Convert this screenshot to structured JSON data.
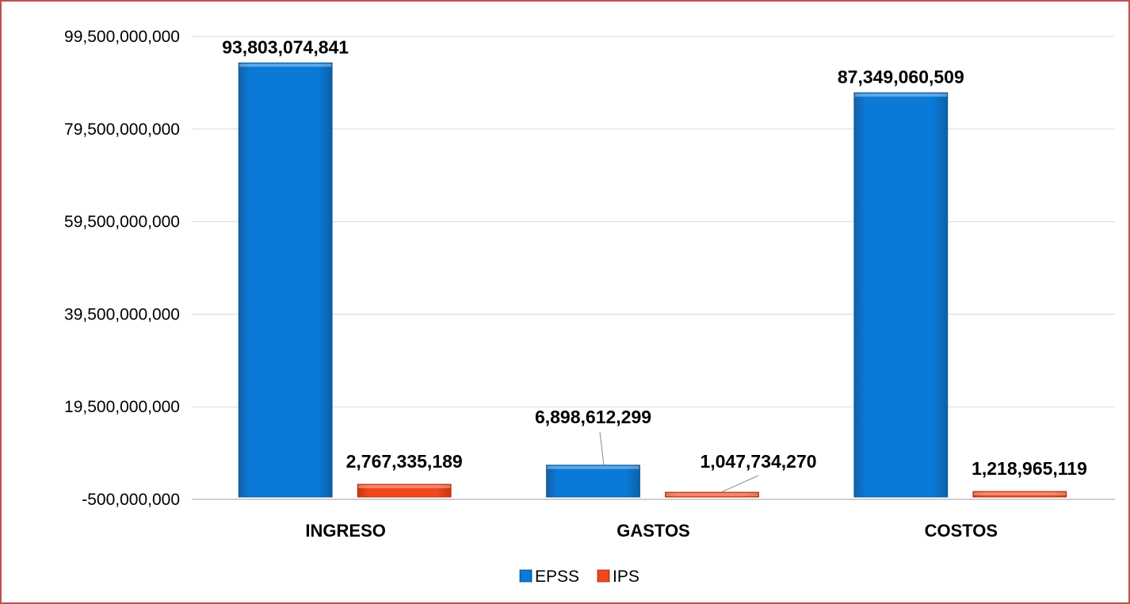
{
  "chart_data": {
    "type": "bar",
    "categories": [
      "INGRESO",
      "GASTOS",
      "COSTOS"
    ],
    "series": [
      {
        "name": "EPSS",
        "color": "#0070c8",
        "values": [
          93803074841,
          6898612299,
          87349060509
        ],
        "labels": [
          "93,803,074,841",
          "6,898,612,299",
          "87,349,060,509"
        ]
      },
      {
        "name": "IPS",
        "color": "#e8401c",
        "values": [
          2767335189,
          1047734270,
          1218965119
        ],
        "labels": [
          "2,767,335,189",
          "1,047,734,270",
          "1,218,965,119"
        ]
      }
    ],
    "y_ticks": [
      -500000000,
      19500000000,
      39500000000,
      59500000000,
      79500000000,
      99500000000
    ],
    "y_tick_labels": [
      "-500,000,000",
      "19,500,000,000",
      "39,500,000,000",
      "59,500,000,000",
      "79,500,000,000",
      "99,500,000,000"
    ],
    "ylim": [
      -500000000,
      99500000000
    ],
    "grid": true,
    "legend_position": "bottom"
  }
}
